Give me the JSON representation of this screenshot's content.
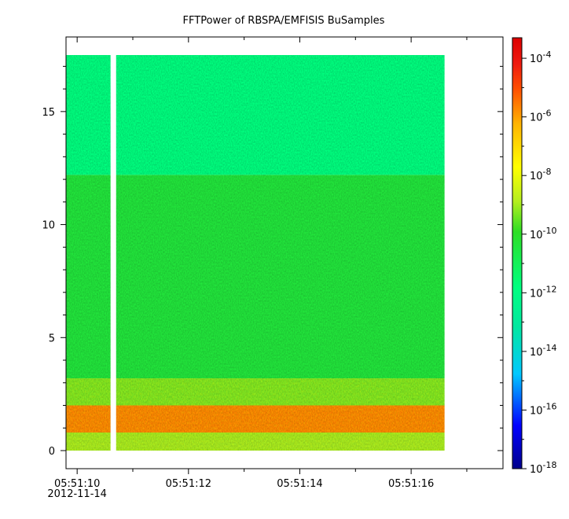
{
  "chart_data": {
    "type": "heatmap",
    "title": "FFTPower of RBSPA/EMFISIS  BuSamples",
    "xlabel": "",
    "ylabel": "",
    "colorbar_label": "",
    "x_ticks": [
      {
        "value": 10,
        "label": "05:51:10",
        "sublabel": "2012-11-14"
      },
      {
        "value": 12,
        "label": "05:51:12"
      },
      {
        "value": 14,
        "label": "05:51:14"
      },
      {
        "value": 16,
        "label": "05:51:16"
      }
    ],
    "x_minor_ticks": [
      11,
      13,
      15,
      17
    ],
    "x_range": [
      9.8,
      17.65
    ],
    "y_range": [
      -0.8,
      18.3
    ],
    "y_ticks": [
      0,
      5,
      10,
      15
    ],
    "data_extent": {
      "x": [
        9.8,
        16.6
      ],
      "y": [
        0,
        17.5
      ]
    },
    "data_gap": {
      "x": [
        10.6,
        10.7
      ]
    },
    "bands": [
      {
        "y": [
          0,
          0.8
        ],
        "log10_power": -9
      },
      {
        "y": [
          0.8,
          2.0
        ],
        "log10_power": -5.7
      },
      {
        "y": [
          2.0,
          3.2
        ],
        "log10_power": -9.3
      },
      {
        "y": [
          3.2,
          12.2
        ],
        "log10_power": -10.4
      },
      {
        "y": [
          12.2,
          17.5
        ],
        "log10_power": -11.8
      }
    ],
    "colorbar": {
      "scale": "log",
      "range_exponent": [
        -18,
        -3.3
      ],
      "tick_exponents": [
        -4,
        -6,
        -8,
        -10,
        -12,
        -14,
        -16,
        -18
      ],
      "tick_base": "10"
    },
    "colors": {
      "c0": "#00008b",
      "c1": "#0000ff",
      "c2": "#00c8ff",
      "c3": "#00e8a0",
      "c4": "#00ff80",
      "c5": "#2ede25",
      "c6": "#b4ee20",
      "c7": "#ffff00",
      "c8": "#ffb400",
      "c9": "#ff5000",
      "c10": "#ee1a10",
      "c11": "#dd0000"
    }
  }
}
